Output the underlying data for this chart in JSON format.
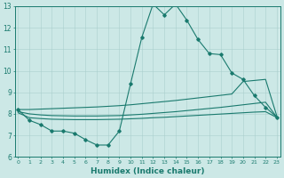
{
  "xlabel": "Humidex (Indice chaleur)",
  "x_values": [
    0,
    1,
    2,
    3,
    4,
    5,
    6,
    7,
    8,
    9,
    10,
    11,
    12,
    13,
    14,
    15,
    16,
    17,
    18,
    19,
    20,
    21,
    22,
    23
  ],
  "line1": [
    8.2,
    7.7,
    7.5,
    7.2,
    7.2,
    7.1,
    6.8,
    6.55,
    6.55,
    7.2,
    9.4,
    11.55,
    13.1,
    12.6,
    13.1,
    12.35,
    11.45,
    10.8,
    10.75,
    9.9,
    9.6,
    8.85,
    8.3,
    7.85
  ],
  "line_upper": [
    8.2,
    8.2,
    8.22,
    8.24,
    8.26,
    8.28,
    8.3,
    8.32,
    8.35,
    8.38,
    8.42,
    8.47,
    8.52,
    8.57,
    8.62,
    8.68,
    8.74,
    8.8,
    8.86,
    8.92,
    9.5,
    9.55,
    9.6,
    7.9
  ],
  "line_mid": [
    8.1,
    8.0,
    7.95,
    7.92,
    7.91,
    7.9,
    7.9,
    7.9,
    7.91,
    7.92,
    7.95,
    7.98,
    8.02,
    8.06,
    8.1,
    8.15,
    8.2,
    8.25,
    8.3,
    8.36,
    8.42,
    8.48,
    8.54,
    7.85
  ],
  "line_lower": [
    8.05,
    7.82,
    7.78,
    7.75,
    7.74,
    7.73,
    7.73,
    7.73,
    7.74,
    7.75,
    7.77,
    7.79,
    7.82,
    7.84,
    7.87,
    7.9,
    7.93,
    7.96,
    7.99,
    8.02,
    8.05,
    8.08,
    8.1,
    7.83
  ],
  "line_color": "#1a7a6e",
  "bg_color": "#cce8e6",
  "grid_color": "#aacfcd",
  "ylim_min": 6,
  "ylim_max": 13,
  "xlim_min": 0,
  "xlim_max": 23
}
